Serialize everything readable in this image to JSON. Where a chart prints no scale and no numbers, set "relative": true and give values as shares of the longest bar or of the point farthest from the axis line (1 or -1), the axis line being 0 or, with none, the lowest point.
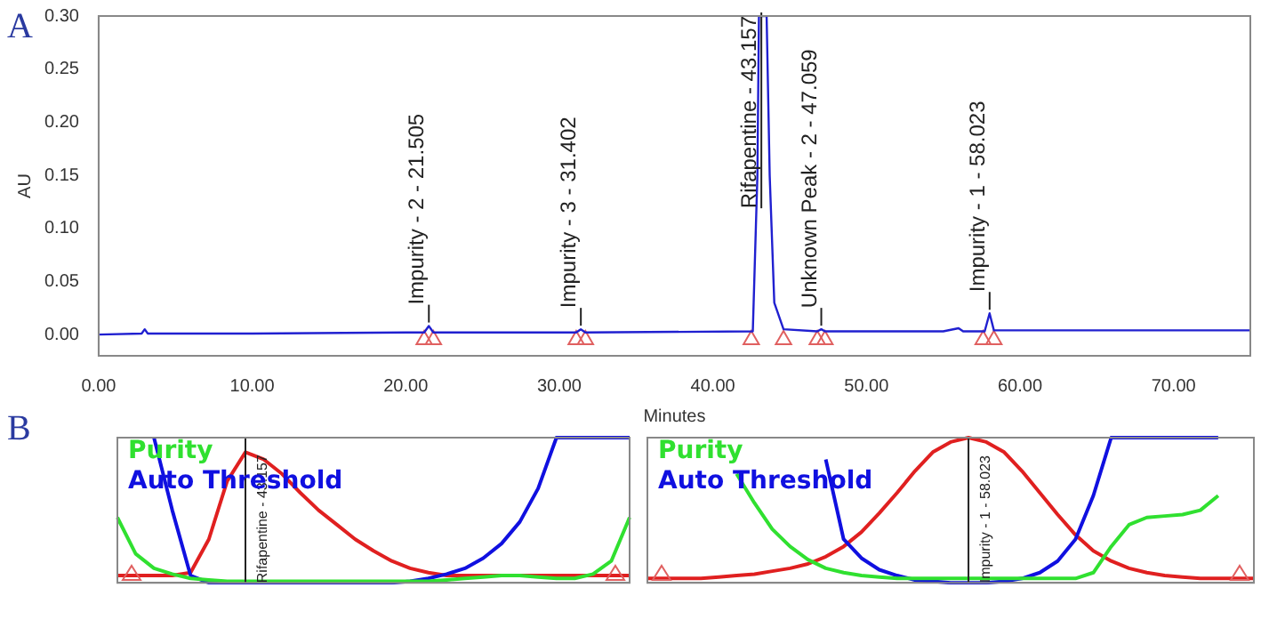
{
  "chart_data": [
    {
      "type": "line",
      "title": "A",
      "xlabel": "Minutes",
      "ylabel": "AU",
      "x": [
        0,
        2.8,
        3.0,
        3.2,
        10,
        20,
        21.2,
        21.5,
        21.8,
        31.1,
        31.4,
        31.7,
        42.6,
        42.9,
        43.0,
        43.5,
        43.7,
        44.0,
        44.6,
        46.8,
        47.06,
        47.3,
        55,
        56,
        56.3,
        57.7,
        58.02,
        58.3,
        65,
        75
      ],
      "series": [
        {
          "type": "line",
          "color": "#2020d0",
          "values": [
            0.0,
            0.001,
            0.005,
            0.001,
            0.001,
            0.002,
            0.002,
            0.008,
            0.002,
            0.002,
            0.005,
            0.002,
            0.003,
            0.15,
            0.3,
            0.3,
            0.15,
            0.03,
            0.005,
            0.003,
            0.005,
            0.003,
            0.003,
            0.006,
            0.003,
            0.003,
            0.02,
            0.004,
            0.004,
            0.004
          ]
        },
        {
          "type": "scatter",
          "marker": "triangle",
          "color": "#e06060",
          "x": [
            21.2,
            21.8,
            31.1,
            31.7,
            42.5,
            44.6,
            46.8,
            47.3,
            57.6,
            58.3
          ],
          "values": [
            -0.005,
            -0.005,
            -0.005,
            -0.005,
            -0.005,
            -0.005,
            -0.005,
            -0.005,
            -0.005,
            -0.005
          ]
        }
      ],
      "annotations": [
        {
          "text": "Impurity - 2 - 21.505",
          "x": 21.505,
          "y": 0.008
        },
        {
          "text": "Impurity - 3 - 31.402",
          "x": 31.402,
          "y": 0.005
        },
        {
          "text": "Rifapentine - 43.157",
          "x": 43.157,
          "y": 0.3
        },
        {
          "text": "Unknown Peak - 2 - 47.059",
          "x": 47.059,
          "y": 0.005
        },
        {
          "text": "Impurity - 1 - 58.023",
          "x": 58.023,
          "y": 0.02
        }
      ],
      "xlim": [
        0,
        75
      ],
      "ylim": [
        -0.02,
        0.3
      ],
      "xticks": [
        {
          "value": 0,
          "label": "0.00"
        },
        {
          "value": 10,
          "label": "10.00"
        },
        {
          "value": 20,
          "label": "20.00"
        },
        {
          "value": 30,
          "label": "30.00"
        },
        {
          "value": 40,
          "label": "40.00"
        },
        {
          "value": 50,
          "label": "50.00"
        },
        {
          "value": 60,
          "label": "60.00"
        },
        {
          "value": 70,
          "label": "70.00"
        }
      ],
      "yticks": [
        {
          "value": 0,
          "label": "0.00"
        },
        {
          "value": 0.05,
          "label": "0.05"
        },
        {
          "value": 0.1,
          "label": "0.10"
        },
        {
          "value": 0.15,
          "label": "0.15"
        },
        {
          "value": 0.2,
          "label": "0.20"
        },
        {
          "value": 0.25,
          "label": "0.25"
        },
        {
          "value": 0.3,
          "label": "0.30"
        }
      ]
    },
    {
      "type": "line",
      "title": "B",
      "relative": true,
      "categories": [
        null,
        null,
        null,
        null,
        null,
        null,
        null,
        null,
        null,
        null,
        null,
        null,
        null,
        null,
        null,
        null,
        null,
        null,
        null,
        null,
        null,
        null,
        null,
        null,
        null,
        null,
        null,
        null,
        null
      ],
      "series": [
        {
          "name": "Purity",
          "type": "line",
          "color": "#30e030",
          "values": [
            0.45,
            0.2,
            0.1,
            0.06,
            0.03,
            0.02,
            0.01,
            0.01,
            0.01,
            0.01,
            0.01,
            0.01,
            0.01,
            0.01,
            0.01,
            0.01,
            0.01,
            0.01,
            0.02,
            0.03,
            0.04,
            0.05,
            0.05,
            0.04,
            0.03,
            0.03,
            0.06,
            0.15,
            0.45
          ]
        },
        {
          "name": "Auto Threshold",
          "type": "line",
          "color": "#1010e0",
          "values": [
            null,
            null,
            1,
            0.5,
            0.05,
            0,
            0,
            0,
            0,
            0,
            0,
            0,
            0,
            0,
            0,
            0,
            0.01,
            0.03,
            0.06,
            0.1,
            0.17,
            0.27,
            0.42,
            0.65,
            1,
            1,
            1,
            1,
            1
          ]
        },
        {
          "type": "line",
          "color": "#e02020",
          "values": [
            0.05,
            0.05,
            0.05,
            0.05,
            0.07,
            0.3,
            0.7,
            0.9,
            0.85,
            0.75,
            0.62,
            0.5,
            0.4,
            0.3,
            0.22,
            0.15,
            0.1,
            0.07,
            0.05,
            0.05,
            0.05,
            0.05,
            0.05,
            0.05,
            0.05,
            0.05,
            0.05,
            0.05,
            0.05
          ]
        }
      ],
      "annotations": [
        "Rifapentine - 43.157"
      ]
    },
    {
      "type": "line",
      "relative": true,
      "categories": [
        null,
        null,
        null,
        null,
        null,
        null,
        null,
        null,
        null,
        null,
        null,
        null,
        null,
        null,
        null,
        null,
        null,
        null,
        null,
        null,
        null,
        null,
        null,
        null,
        null,
        null,
        null,
        null,
        null,
        null,
        null,
        null,
        null,
        null,
        null
      ],
      "series": [
        {
          "name": "Purity",
          "type": "line",
          "color": "#30e030",
          "values": [
            null,
            null,
            null,
            null,
            null,
            0.75,
            0.55,
            0.37,
            0.25,
            0.16,
            0.1,
            0.07,
            0.05,
            0.04,
            0.03,
            0.03,
            0.03,
            0.03,
            0.03,
            0.03,
            0.03,
            0.03,
            0.03,
            0.03,
            0.03,
            0.07,
            0.25,
            0.4,
            0.45,
            0.46,
            0.47,
            0.5,
            0.6,
            null,
            null
          ]
        },
        {
          "name": "Auto Threshold",
          "type": "line",
          "color": "#1010e0",
          "values": [
            null,
            null,
            null,
            null,
            null,
            null,
            null,
            null,
            null,
            null,
            0.85,
            0.3,
            0.17,
            0.09,
            0.05,
            0.02,
            0.01,
            0,
            0,
            0,
            0.01,
            0.03,
            0.07,
            0.15,
            0.3,
            0.6,
            1,
            1,
            1,
            1,
            1,
            1,
            1,
            null,
            null
          ]
        },
        {
          "type": "line",
          "color": "#e02020",
          "values": [
            0.03,
            0.03,
            0.03,
            0.03,
            0.04,
            0.05,
            0.06,
            0.08,
            0.1,
            0.13,
            0.18,
            0.25,
            0.35,
            0.48,
            0.62,
            0.77,
            0.9,
            0.97,
            1,
            0.97,
            0.9,
            0.77,
            0.62,
            0.47,
            0.33,
            0.22,
            0.15,
            0.1,
            0.07,
            0.05,
            0.04,
            0.03,
            0.03,
            0.03,
            0.03
          ]
        }
      ],
      "annotations": [
        "Impurity - 1 - 58.023"
      ]
    }
  ]
}
